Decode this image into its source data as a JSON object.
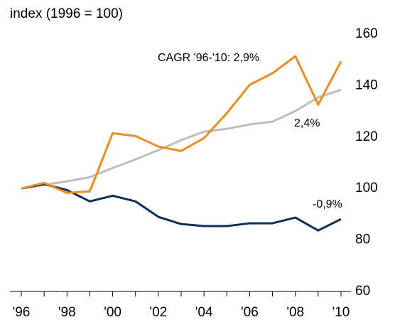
{
  "chart_data": {
    "type": "line",
    "y_label": "index (1996 = 100)",
    "categories": [
      "'96",
      null,
      "'98",
      null,
      "'00",
      null,
      "'02",
      null,
      "'04",
      null,
      "'06",
      null,
      "'08",
      null,
      "'10"
    ],
    "series": [
      {
        "color": "#bdbdbd",
        "values": [
          100,
          101.4,
          102.8,
          104.4,
          108,
          111.3,
          114.9,
          118.8,
          122.1,
          123.2,
          124.9,
          126,
          130.1,
          135.4,
          138.4
        ]
      },
      {
        "color": "#0d2f5a",
        "values": [
          100,
          101.7,
          99.4,
          95,
          97.2,
          95,
          89,
          86.2,
          85.4,
          85.4,
          86.5,
          86.5,
          88.7,
          83.7,
          88.1
        ]
      },
      {
        "color": "#ee8a1f",
        "values": [
          100,
          102.2,
          98.3,
          98.9,
          121.5,
          120.4,
          116.3,
          114.6,
          119.6,
          129.3,
          140.3,
          144.8,
          151.4,
          132.6,
          149.4
        ]
      }
    ],
    "annotations": [
      "CAGR '96-'10: 2,9%",
      "2,4%",
      "-0,9%"
    ],
    "ylim": [
      60,
      160
    ],
    "yticks": [
      60,
      80,
      100,
      120,
      140,
      160
    ]
  }
}
